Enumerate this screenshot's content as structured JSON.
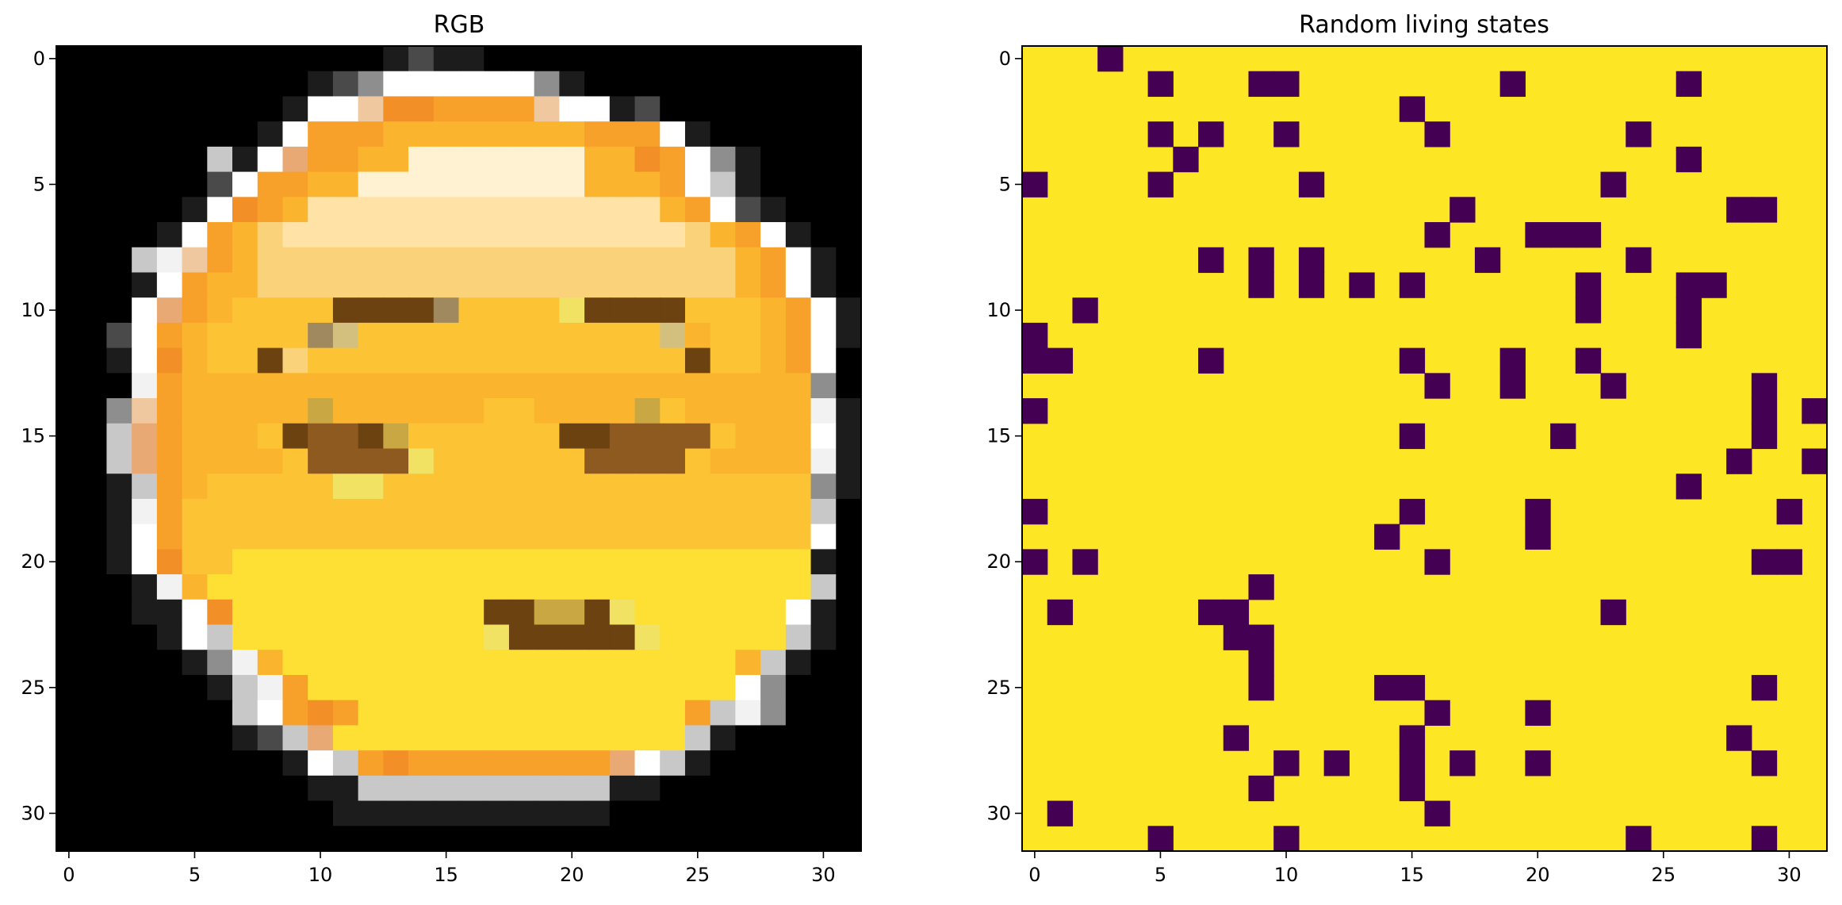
{
  "chart_data": [
    {
      "type": "heatmap",
      "title": "RGB",
      "xlabel": "",
      "ylabel": "",
      "xlim": [
        -0.5,
        31.5
      ],
      "ylim": [
        31.5,
        -0.5
      ],
      "xticks": [
        0,
        5,
        10,
        15,
        20,
        25,
        30
      ],
      "yticks": [
        0,
        5,
        10,
        15,
        20,
        25,
        30
      ],
      "grid": false,
      "grid_size": [
        32,
        32
      ],
      "palette": {
        "k": "#000000",
        "d": "#1c1c1c",
        "g": "#4a4a4a",
        "m": "#8e8e8e",
        "s": "#c8c8c8",
        "w": "#f2f2f2",
        "W": "#ffffff",
        "c": "#fff2d2",
        "l": "#ffe2a6",
        "p": "#f0c8a0",
        "t": "#e9a974",
        "o": "#f28f27",
        "O": "#f7a12a",
        "y": "#fbb42e",
        "Y": "#fcc434",
        "z": "#fdd734",
        "Z": "#fde033",
        "j": "#fad27a",
        "q": "#f1e264",
        "b": "#6b4210",
        "B": "#8f5a1f",
        "x": "#a0895e",
        "v": "#c9a742",
        "e": "#d4c07e"
      },
      "rows": [
        "kkkkkkkkkkkkkdgddkkkkkkkkkkkkkkk",
        "kkkkkkkkkkdgmWWWWWWmdkkkkkkkkkkk",
        "kkkkkkkkkdWWpooOOOOpWWdgkkkkkkkk",
        "kkkkkkkkdWOOOyyyyyyyyOOOWdkkkkkk",
        "kkkkkksdWtOOyycccccccyyoOWmdkkkk",
        "kkkkkkgWOOyycccccccccyyyOWsdkkkk",
        "kkkkkdWoOyllllllllllllllyOWgdkkk",
        "kkkkdWOyjlllllllllllllllljyOWdkk",
        "kkkswpOyjjjjjjjjjjjjjjjjjjjyOWdk",
        "kkkdWOyyjjjjjjjjjjjjjjjjjjjyOWdk",
        "kkkWtOyYYYYbbbbxYYYYqbbbbYYYyOWd",
        "kkgWOyYYYYxeYYYYYYYYYYYYeyYYyOWd",
        "kkdWoyYYbjYYYYYYYYYYYYYYYbYYyOWk",
        "kkkwOyyyyyyyyyyyyyyyyyyyyyyyyymk",
        "kkmpOyyyyyvyyyyyyYYyyyyvYyyyyywd",
        "kkstOyyyYbBBbvYYYYYYbbBBBBYyyyWd",
        "kkstOyyyyYBBBBqYYYYYYBBBBYyyyywd",
        "kkdsOyYYYYYqqYYYYYYYYYYYYYYYYYmd",
        "kkdwOYYYYYYYYYYYYYYYYYYYYYYYYYsk",
        "kkdWOYYYYYYYYYYYYYYYYYYYYYYYYYWk",
        "kkdWoYYZZZZZZZZZZZZZZZZZZZZZZZdk",
        "kkkdwyZZZZZZZZZZZZZZZZZZZZZZZZsk",
        "kkkddWoZZZZZZZZZZbbvvbqZZZZZZWdk",
        "kkkkdWsZZZZZZZZZZqbbbbbqZZZZZsdk",
        "kkkkkdmwyZZZZZZZZZZZZZZZZZZysdkk",
        "kkkkkkdswOZZZZZZZZZZZZZZZZZWmkkk",
        "kkkkkkksWOoOZZZZZZZZZZZZZOswmkkk",
        "kkkkkkkdgstZZZZZZZZZZZZZZsdkkkkk",
        "kkkkkkkkkdWsOoOOOOOOOOtWsdkkkkkk",
        "kkkkkkkkkkddssssssssssddkkkkkkkk",
        "kkkkkkkkkkkdddddddddddkkkkkkkkkk",
        "kkkkkkkkkkkkkkkkkkkkkkkkkkkkkkkk"
      ]
    },
    {
      "type": "heatmap",
      "title": "Random living states",
      "xlabel": "",
      "ylabel": "",
      "xlim": [
        -0.5,
        31.5
      ],
      "ylim": [
        31.5,
        -0.5
      ],
      "xticks": [
        0,
        5,
        10,
        15,
        20,
        25,
        30
      ],
      "yticks": [
        0,
        5,
        10,
        15,
        20,
        25,
        30
      ],
      "grid": false,
      "grid_size": [
        32,
        32
      ],
      "colors": {
        "alive": "#fde725",
        "dead": "#440154"
      },
      "dead_cells": [
        [
          3,
          0
        ],
        [
          5,
          1
        ],
        [
          9,
          1
        ],
        [
          10,
          1
        ],
        [
          19,
          1
        ],
        [
          26,
          1
        ],
        [
          15,
          2
        ],
        [
          5,
          3
        ],
        [
          7,
          3
        ],
        [
          10,
          3
        ],
        [
          16,
          3
        ],
        [
          24,
          3
        ],
        [
          6,
          4
        ],
        [
          26,
          4
        ],
        [
          0,
          5
        ],
        [
          5,
          5
        ],
        [
          11,
          5
        ],
        [
          23,
          5
        ],
        [
          17,
          6
        ],
        [
          28,
          6
        ],
        [
          29,
          6
        ],
        [
          16,
          7
        ],
        [
          20,
          7
        ],
        [
          21,
          7
        ],
        [
          22,
          7
        ],
        [
          7,
          8
        ],
        [
          9,
          8
        ],
        [
          11,
          8
        ],
        [
          18,
          8
        ],
        [
          24,
          8
        ],
        [
          9,
          9
        ],
        [
          11,
          9
        ],
        [
          13,
          9
        ],
        [
          15,
          9
        ],
        [
          22,
          9
        ],
        [
          26,
          9
        ],
        [
          27,
          9
        ],
        [
          2,
          10
        ],
        [
          22,
          10
        ],
        [
          26,
          10
        ],
        [
          0,
          11
        ],
        [
          26,
          11
        ],
        [
          0,
          12
        ],
        [
          1,
          12
        ],
        [
          7,
          12
        ],
        [
          15,
          12
        ],
        [
          19,
          12
        ],
        [
          22,
          12
        ],
        [
          16,
          13
        ],
        [
          19,
          13
        ],
        [
          23,
          13
        ],
        [
          29,
          13
        ],
        [
          0,
          14
        ],
        [
          29,
          14
        ],
        [
          31,
          14
        ],
        [
          15,
          15
        ],
        [
          21,
          15
        ],
        [
          29,
          15
        ],
        [
          28,
          16
        ],
        [
          31,
          16
        ],
        [
          26,
          17
        ],
        [
          0,
          18
        ],
        [
          15,
          18
        ],
        [
          20,
          18
        ],
        [
          30,
          18
        ],
        [
          14,
          19
        ],
        [
          20,
          19
        ],
        [
          0,
          20
        ],
        [
          2,
          20
        ],
        [
          16,
          20
        ],
        [
          29,
          20
        ],
        [
          30,
          20
        ],
        [
          9,
          21
        ],
        [
          1,
          22
        ],
        [
          7,
          22
        ],
        [
          8,
          22
        ],
        [
          23,
          22
        ],
        [
          8,
          23
        ],
        [
          9,
          23
        ],
        [
          9,
          24
        ],
        [
          9,
          25
        ],
        [
          14,
          25
        ],
        [
          15,
          25
        ],
        [
          29,
          25
        ],
        [
          16,
          26
        ],
        [
          20,
          26
        ],
        [
          8,
          27
        ],
        [
          15,
          27
        ],
        [
          28,
          27
        ],
        [
          10,
          28
        ],
        [
          12,
          28
        ],
        [
          15,
          28
        ],
        [
          17,
          28
        ],
        [
          20,
          28
        ],
        [
          29,
          28
        ],
        [
          9,
          29
        ],
        [
          15,
          29
        ],
        [
          1,
          30
        ],
        [
          16,
          30
        ],
        [
          5,
          31
        ],
        [
          10,
          31
        ],
        [
          24,
          31
        ],
        [
          29,
          31
        ]
      ]
    }
  ]
}
